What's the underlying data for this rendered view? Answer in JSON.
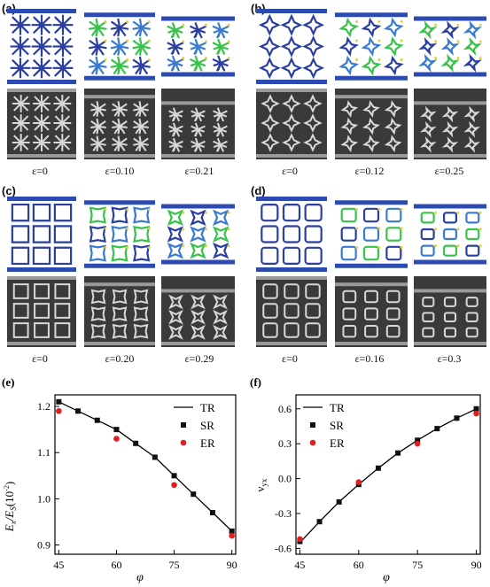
{
  "panels": {
    "a": {
      "label": "(a)",
      "strains": [
        "ε=0",
        "ε=0.10",
        "ε=0.21"
      ]
    },
    "b": {
      "label": "(b)",
      "strains": [
        "ε=0",
        "ε=0.12",
        "ε=0.25"
      ]
    },
    "c": {
      "label": "(c)",
      "strains": [
        "ε=0",
        "ε=0.20",
        "ε=0.29"
      ]
    },
    "d": {
      "label": "(d)",
      "strains": [
        "ε=0",
        "ε=0.16",
        "ε=0.3"
      ]
    }
  },
  "colors": {
    "sim_blue": "#2a3fa0",
    "sim_plate": "#2c4ab0",
    "sim_green": "#37c24a",
    "sim_yellow": "#e3d23a",
    "photo_bg": "#3a3a3a",
    "photo_struct": "#d8d8d8",
    "er_red": "#e02020",
    "sr_black": "#111111"
  },
  "chart_data": [
    {
      "label": "(e)",
      "type": "line",
      "xlabel": "φ",
      "ylabel": "E_x/E_S(10^-2)",
      "ylabel_main": "E",
      "ylabel_sub1": "x",
      "ylabel_mid": "/E",
      "ylabel_sub2": "S",
      "ylabel_tail": "(10",
      "ylabel_sup": "-2",
      "ylabel_close": ")",
      "xlim": [
        44,
        91
      ],
      "ylim": [
        0.88,
        1.225
      ],
      "xticks": [
        45,
        60,
        75,
        90
      ],
      "yticks": [
        0.9,
        1.0,
        1.1,
        1.2
      ],
      "ytick_labels": [
        "0.9",
        "1.0",
        "1.1",
        "1.2"
      ],
      "legend": [
        "TR",
        "SR",
        "ER"
      ],
      "legend_position": "top-right",
      "series": [
        {
          "name": "TR",
          "kind": "line",
          "x": [
            45,
            50,
            55,
            60,
            65,
            70,
            75,
            80,
            85,
            90
          ],
          "y": [
            1.21,
            1.19,
            1.17,
            1.15,
            1.12,
            1.09,
            1.05,
            1.01,
            0.97,
            0.93
          ]
        },
        {
          "name": "SR",
          "kind": "square",
          "x": [
            45,
            50,
            55,
            60,
            65,
            70,
            75,
            80,
            85,
            90
          ],
          "y": [
            1.21,
            1.19,
            1.17,
            1.15,
            1.12,
            1.09,
            1.05,
            1.01,
            0.97,
            0.93
          ]
        },
        {
          "name": "ER",
          "kind": "circle",
          "x": [
            45,
            60,
            75,
            90
          ],
          "y": [
            1.19,
            1.13,
            1.03,
            0.92
          ]
        }
      ]
    },
    {
      "label": "(f)",
      "type": "line",
      "xlabel": "φ",
      "ylabel": "ν_yx",
      "ylabel_main": "ν",
      "ylabel_sub1": "yx",
      "xlim": [
        44,
        91
      ],
      "ylim": [
        -0.65,
        0.72
      ],
      "xticks": [
        45,
        60,
        75,
        90
      ],
      "yticks": [
        -0.6,
        -0.3,
        0.0,
        0.3,
        0.6
      ],
      "ytick_labels": [
        "-0.6",
        "-0.3",
        "0.0",
        "0.3",
        "0.6"
      ],
      "legend": [
        "TR",
        "SR",
        "ER"
      ],
      "legend_position": "top-left",
      "series": [
        {
          "name": "TR",
          "kind": "line",
          "x": [
            45,
            50,
            55,
            60,
            65,
            70,
            75,
            80,
            85,
            90
          ],
          "y": [
            -0.55,
            -0.37,
            -0.2,
            -0.05,
            0.09,
            0.22,
            0.33,
            0.43,
            0.52,
            0.6
          ]
        },
        {
          "name": "SR",
          "kind": "square",
          "x": [
            45,
            50,
            55,
            60,
            65,
            70,
            75,
            80,
            85,
            90
          ],
          "y": [
            -0.54,
            -0.37,
            -0.2,
            -0.05,
            0.09,
            0.22,
            0.33,
            0.43,
            0.52,
            0.6
          ]
        },
        {
          "name": "ER",
          "kind": "circle",
          "x": [
            45,
            60,
            75,
            90
          ],
          "y": [
            -0.52,
            -0.03,
            0.3,
            0.56
          ]
        }
      ]
    }
  ]
}
